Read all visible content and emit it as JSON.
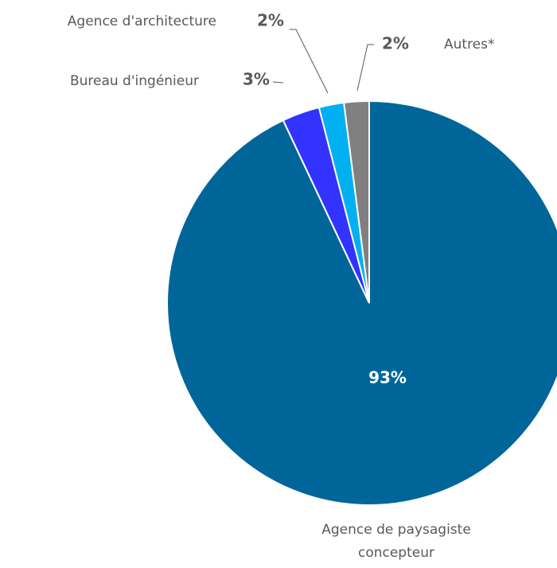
{
  "chart_data": {
    "type": "pie",
    "categories": [
      "Agence de paysagiste concepteur",
      "Bureau d'ingénieur",
      "Agence d'architecture",
      "Autres*"
    ],
    "values": [
      93,
      3,
      2,
      2
    ],
    "value_labels": [
      "93%",
      "3%",
      "2%",
      "2%"
    ],
    "colors": [
      "#006699",
      "#3333ff",
      "#00b0f0",
      "#808080"
    ]
  }
}
